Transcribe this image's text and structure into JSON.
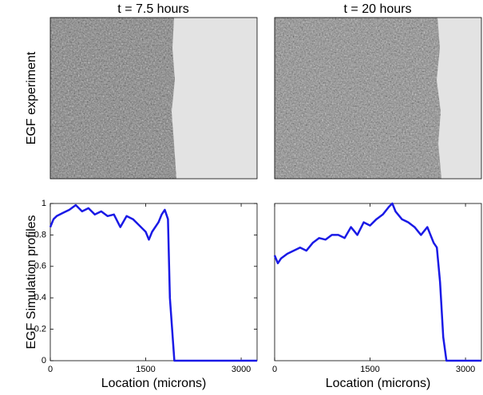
{
  "panels": [
    {
      "title": "t = 7.5 hours"
    },
    {
      "title": "t = 20 hours"
    }
  ],
  "experiment_label": "EGF experiment",
  "chart_data": [
    {
      "type": "line",
      "ylabel": "EGF Simulation profiles",
      "xlabel": "Location (microns)",
      "color": "#1a1ae6",
      "x": [
        0,
        50,
        100,
        200,
        300,
        400,
        500,
        600,
        700,
        800,
        900,
        1000,
        1100,
        1200,
        1300,
        1400,
        1500,
        1550,
        1600,
        1700,
        1750,
        1800,
        1850,
        1880,
        1950,
        2000,
        3250
      ],
      "values": [
        0.85,
        0.9,
        0.92,
        0.94,
        0.96,
        0.99,
        0.95,
        0.97,
        0.93,
        0.95,
        0.92,
        0.93,
        0.85,
        0.92,
        0.9,
        0.86,
        0.82,
        0.77,
        0.82,
        0.88,
        0.93,
        0.96,
        0.9,
        0.4,
        0,
        0,
        0
      ],
      "xlim": [
        0,
        3250
      ],
      "xticks": [
        0,
        1500,
        3000
      ],
      "ylim": [
        0,
        1
      ],
      "yticks": [
        0,
        0.2,
        0.4,
        0.6,
        0.8,
        1
      ]
    },
    {
      "type": "line",
      "xlabel": "Location (microns)",
      "color": "#1a1ae6",
      "x": [
        0,
        50,
        100,
        200,
        300,
        400,
        500,
        600,
        700,
        800,
        900,
        1000,
        1100,
        1200,
        1300,
        1400,
        1500,
        1600,
        1700,
        1800,
        1850,
        1900,
        2000,
        2100,
        2200,
        2300,
        2400,
        2500,
        2550,
        2600,
        2650,
        2700,
        3250
      ],
      "values": [
        0.67,
        0.62,
        0.65,
        0.68,
        0.7,
        0.72,
        0.7,
        0.75,
        0.78,
        0.77,
        0.8,
        0.8,
        0.78,
        0.85,
        0.8,
        0.88,
        0.86,
        0.9,
        0.93,
        0.98,
        1.0,
        0.95,
        0.9,
        0.88,
        0.85,
        0.8,
        0.85,
        0.75,
        0.72,
        0.5,
        0.15,
        0,
        0
      ],
      "xlim": [
        0,
        3250
      ],
      "xticks": [
        0,
        1500,
        3000
      ],
      "ylim": [
        0,
        1
      ]
    }
  ]
}
